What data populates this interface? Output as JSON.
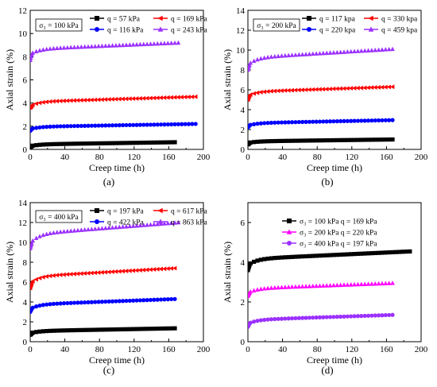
{
  "chart_data": [
    {
      "type": "scatter",
      "panel_label": "(a)",
      "xlabel": "Creep time (h)",
      "ylabel": "Axial strain (%)",
      "xlim": [
        0,
        200
      ],
      "ylim": [
        0,
        12
      ],
      "xticks": [
        0,
        40,
        80,
        120,
        160,
        200
      ],
      "yticks": [
        0,
        2,
        4,
        6,
        8,
        10,
        12
      ],
      "condition_box": "σ₃ = 100 kPa",
      "legend_position": "top-right",
      "series": [
        {
          "name": "q = 57 kPa",
          "color": "#000000",
          "marker": "square",
          "start_y": 0.2,
          "inst_y": 0.28,
          "end_x": 168,
          "end_y": 0.62
        },
        {
          "name": "q = 116 kPa",
          "color": "#0000ff",
          "marker": "circle",
          "start_y": 1.6,
          "inst_y": 1.75,
          "end_x": 193,
          "end_y": 2.2
        },
        {
          "name": "q = 169 kPa",
          "color": "#ff0000",
          "marker": "triangle-left",
          "start_y": 3.6,
          "inst_y": 3.75,
          "end_x": 193,
          "end_y": 4.55
        },
        {
          "name": "q = 243 kPa",
          "color": "#9b30ff",
          "marker": "triangle-up",
          "start_y": 7.7,
          "inst_y": 8.2,
          "end_x": 172,
          "end_y": 9.2
        }
      ]
    },
    {
      "type": "scatter",
      "panel_label": "(b)",
      "xlabel": "Creep time (h)",
      "ylabel": "Axial strain (%)",
      "xlim": [
        0,
        200
      ],
      "ylim": [
        0,
        14
      ],
      "xticks": [
        0,
        40,
        80,
        120,
        160,
        200
      ],
      "yticks": [
        0,
        2,
        4,
        6,
        8,
        10,
        12,
        14
      ],
      "condition_box": "σ₃ = 200 kPa",
      "legend_position": "top-right",
      "series": [
        {
          "name": "q = 117 kpa",
          "color": "#000000",
          "marker": "square",
          "start_y": 0.5,
          "inst_y": 0.65,
          "end_x": 168,
          "end_y": 1.0
        },
        {
          "name": "q = 220 kpa",
          "color": "#0000ff",
          "marker": "circle",
          "start_y": 2.2,
          "inst_y": 2.4,
          "end_x": 168,
          "end_y": 2.95
        },
        {
          "name": "q = 330 kpa",
          "color": "#ff0000",
          "marker": "triangle-left",
          "start_y": 5.0,
          "inst_y": 5.4,
          "end_x": 168,
          "end_y": 6.3
        },
        {
          "name": "q = 459 kpa",
          "color": "#9b30ff",
          "marker": "triangle-up",
          "start_y": 8.0,
          "inst_y": 8.5,
          "end_x": 168,
          "end_y": 10.1
        }
      ]
    },
    {
      "type": "scatter",
      "panel_label": "(c)",
      "xlabel": "Creep time (h)",
      "ylabel": "Axial strain (%)",
      "xlim": [
        0,
        200
      ],
      "ylim": [
        0,
        14
      ],
      "xticks": [
        0,
        40,
        80,
        120,
        160,
        200
      ],
      "yticks": [
        0,
        2,
        4,
        6,
        8,
        10,
        12,
        14
      ],
      "condition_box": "σ₃ = 400 kPa",
      "legend_position": "top-right",
      "series": [
        {
          "name": "q = 197 kPa",
          "color": "#000000",
          "marker": "square",
          "start_y": 0.7,
          "inst_y": 0.85,
          "end_x": 168,
          "end_y": 1.35
        },
        {
          "name": "q = 422 kPa",
          "color": "#0000ff",
          "marker": "circle",
          "start_y": 3.0,
          "inst_y": 3.3,
          "end_x": 168,
          "end_y": 4.3
        },
        {
          "name": "q = 617 kPa",
          "color": "#ff0000",
          "marker": "triangle-left",
          "start_y": 5.4,
          "inst_y": 5.9,
          "end_x": 168,
          "end_y": 7.4
        },
        {
          "name": "q = 863 kPa",
          "color": "#9b30ff",
          "marker": "triangle-up",
          "start_y": 9.4,
          "inst_y": 9.9,
          "end_x": 172,
          "end_y": 12.0
        }
      ]
    },
    {
      "type": "scatter",
      "panel_label": "(d)",
      "xlabel": "Creep time (h)",
      "ylabel": "Axial strain (%)",
      "xlim": [
        0,
        200
      ],
      "ylim": [
        0,
        7
      ],
      "xticks": [
        0,
        40,
        80,
        120,
        160,
        200
      ],
      "yticks": [
        0,
        2,
        4,
        6
      ],
      "condition_box": "",
      "legend_position": "top-center",
      "series": [
        {
          "name": "σ₃ = 100 kPa  q = 169 kPa",
          "color": "#000000",
          "marker": "square",
          "start_y": 3.6,
          "inst_y": 3.85,
          "end_x": 190,
          "end_y": 4.55
        },
        {
          "name": "σ₃ = 200 kPa  q = 220 kPa",
          "color": "#ff00ff",
          "marker": "triangle-up",
          "start_y": 2.3,
          "inst_y": 2.45,
          "end_x": 168,
          "end_y": 2.95
        },
        {
          "name": "σ₃ = 400 kPa  q = 197 kPa",
          "color": "#9b30ff",
          "marker": "circle",
          "start_y": 0.75,
          "inst_y": 0.9,
          "end_x": 168,
          "end_y": 1.35
        }
      ]
    }
  ]
}
